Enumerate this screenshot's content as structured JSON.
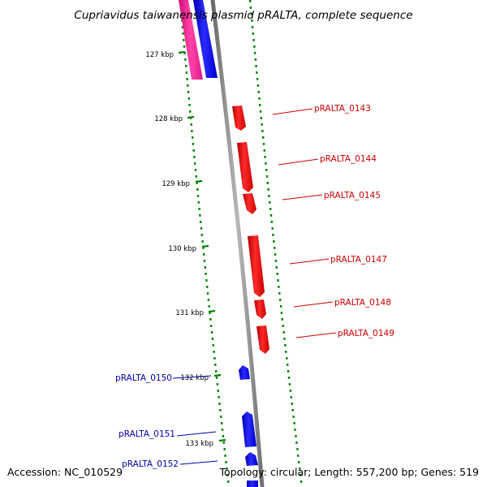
{
  "title": "Cupriavidus taiwanensis plasmid pRALTA, complete sequence",
  "accession": "Accession: NC_010529",
  "summary": "Topology: circular; Length: 557,200 bp; Genes: 519",
  "colors": {
    "forward_gene": "#ff0000",
    "reverse_gene": "#0000ff",
    "forward_label": "#cc0000",
    "reverse_label": "#0000aa",
    "tick_marks": "#008000",
    "backbone": "#808080",
    "feature_pink": "#ff1493"
  },
  "ticks": [
    "127 kbp",
    "128 kbp",
    "129 kbp",
    "130 kbp",
    "131 kbp",
    "132 kbp",
    "133 kbp"
  ],
  "genes": {
    "forward": [
      "pRALTA_0143",
      "pRALTA_0144",
      "pRALTA_0145",
      "pRALTA_0147",
      "pRALTA_0148",
      "pRALTA_0149"
    ],
    "reverse": [
      "pRALTA_0150",
      "pRALTA_0151",
      "pRALTA_0152"
    ]
  }
}
